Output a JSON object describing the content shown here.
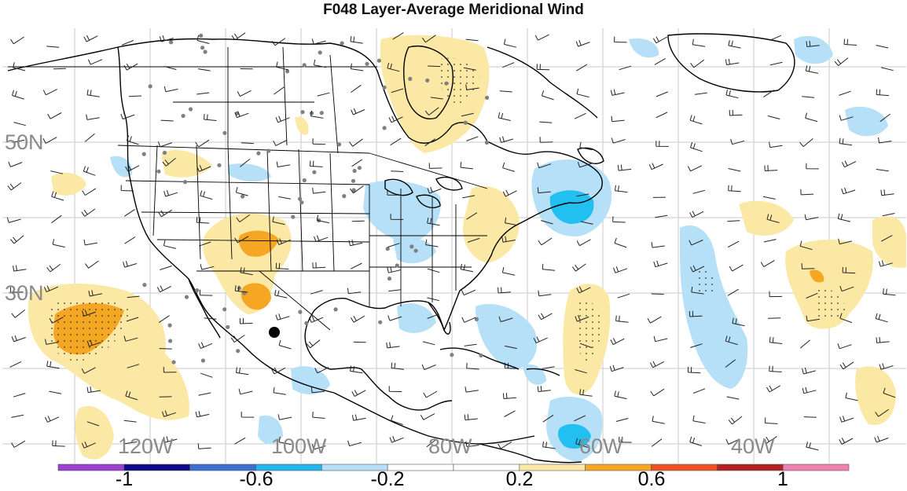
{
  "title": "F048 Layer-Average Meridional Wind",
  "map": {
    "lat_labels": [
      "50N",
      "30N"
    ],
    "lon_labels": [
      "120W",
      "100W",
      "80W",
      "60W",
      "40W"
    ],
    "colors": {
      "ocean_bg": "#ffffff",
      "coast": "#000000",
      "grid": "#bdbdbd",
      "neg_light": "#b5e0f7",
      "neg_mid": "#22c0f0",
      "pos_light": "#fbe8a5",
      "pos_mid": "#f5a623",
      "station": "#808080"
    }
  },
  "colorbar": {
    "labels": [
      "-1",
      "-0.6",
      "-0.2",
      "0.2",
      "0.6",
      "1"
    ],
    "colors": [
      "#9a3fcf",
      "#0b0b8a",
      "#3a6ed0",
      "#22b5f0",
      "#b5e0f7",
      "#ffffff",
      "#ffffff",
      "#fbe8a5",
      "#f5a623",
      "#f0501e",
      "#b22222",
      "#f080b0"
    ]
  }
}
